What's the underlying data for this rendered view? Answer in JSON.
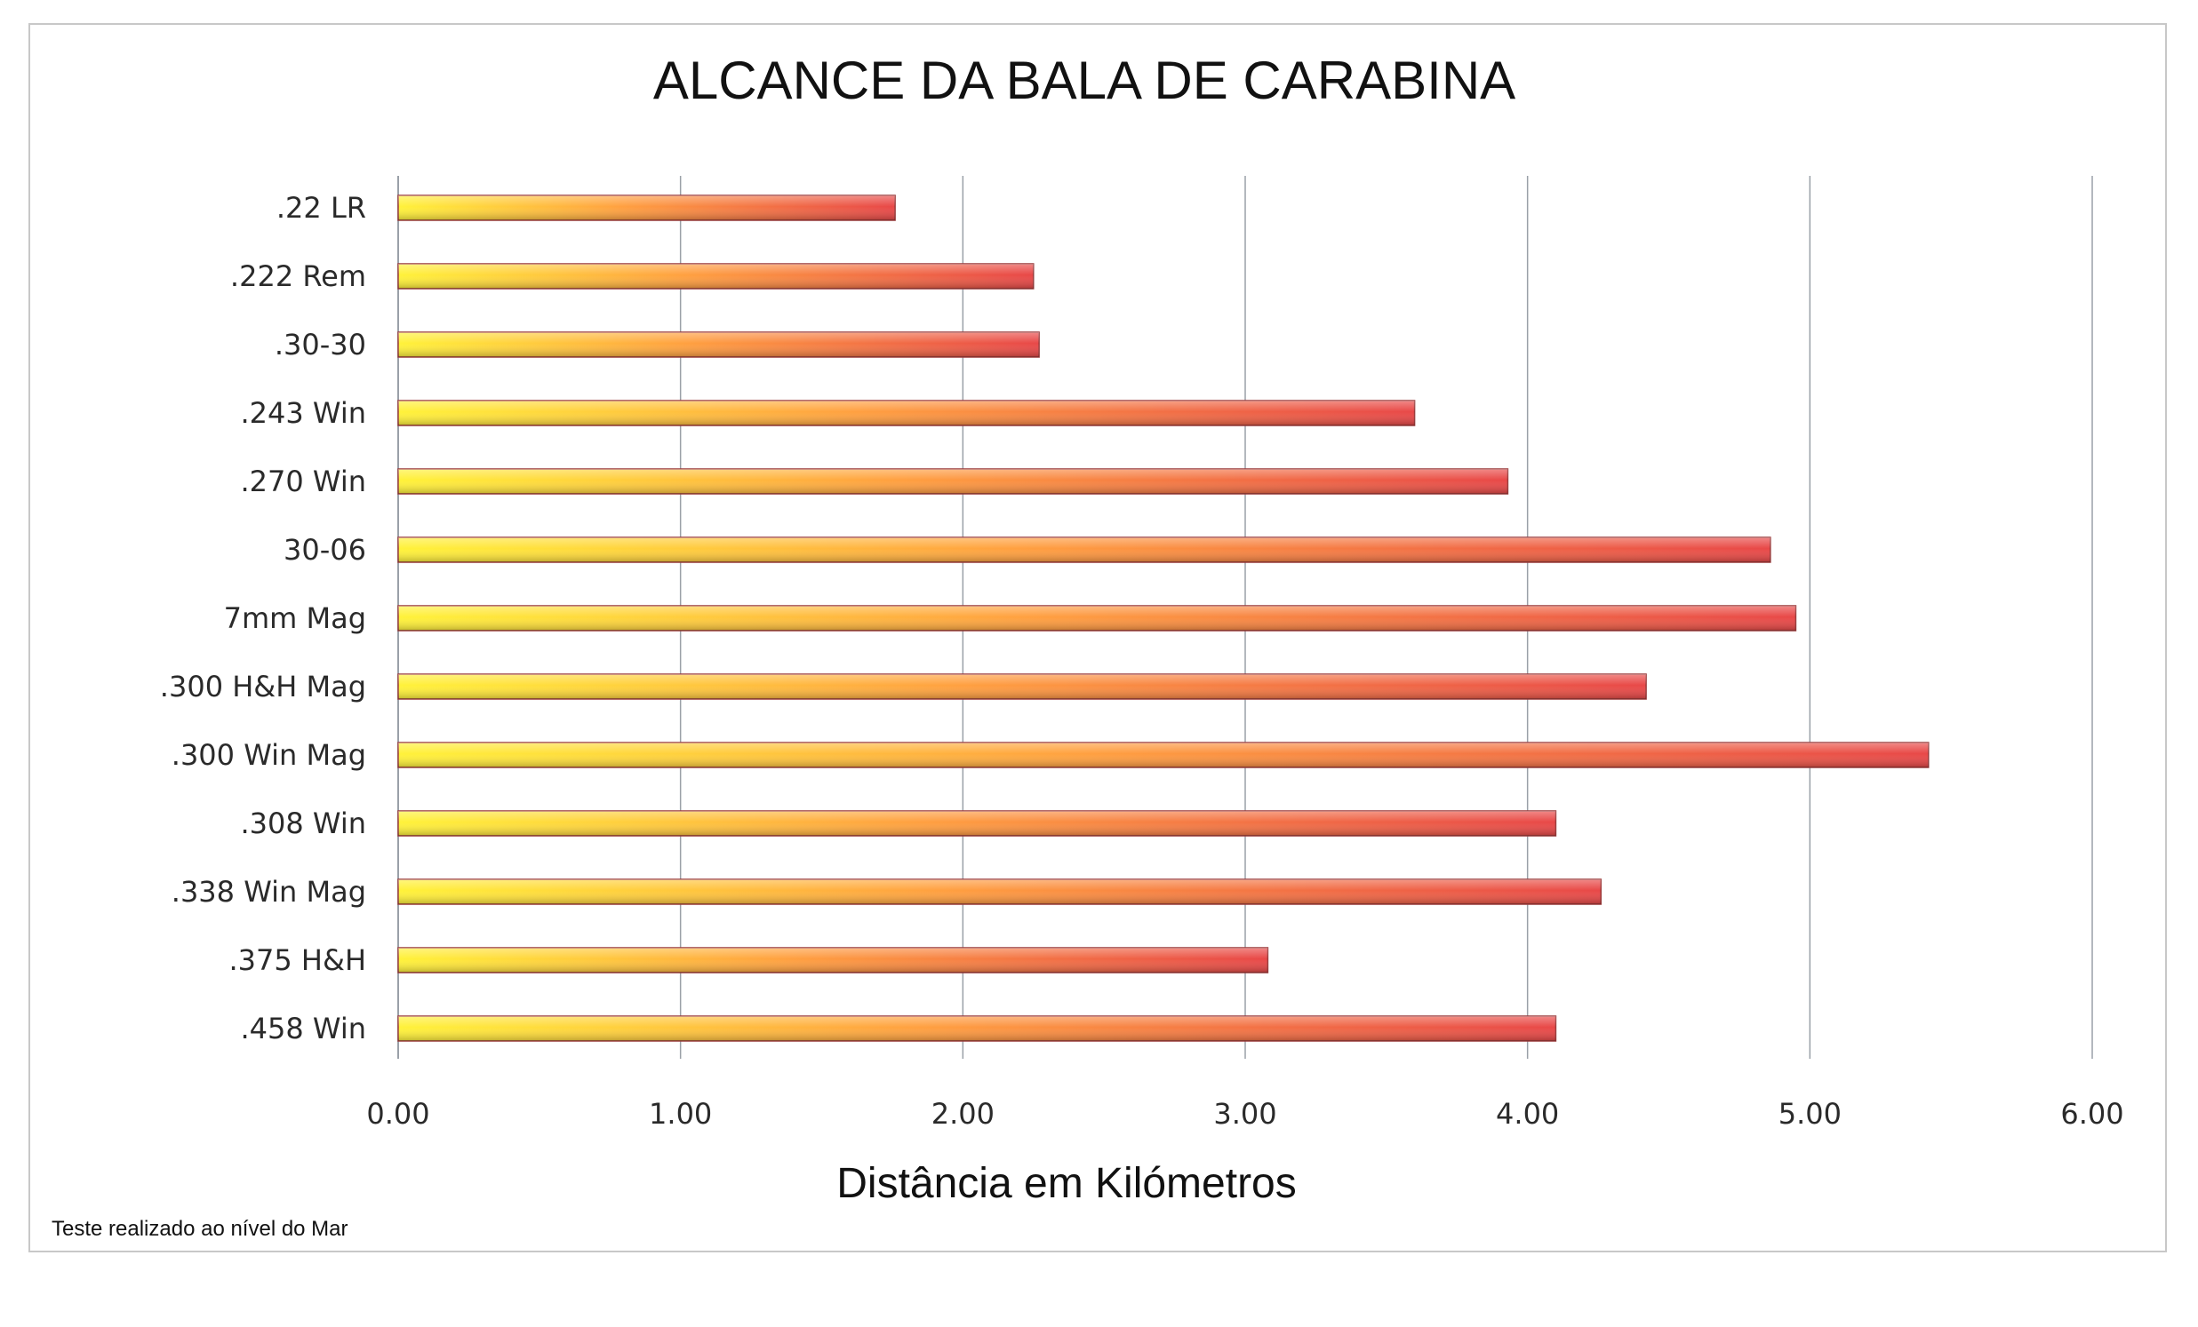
{
  "chart_data": {
    "type": "bar",
    "orientation": "horizontal",
    "title": "ALCANCE DA BALA DE CARABINA",
    "xlabel": "Distância em Kilómetros",
    "ylabel": "",
    "xlim": [
      0,
      6
    ],
    "x_ticks": [
      "0.00",
      "1.00",
      "2.00",
      "3.00",
      "4.00",
      "5.00",
      "6.00"
    ],
    "categories": [
      ".22 LR",
      ".222 Rem",
      ".30-30",
      ".243 Win",
      ".270 Win",
      "30-06",
      "7mm Mag",
      ".300 H&H Mag",
      ".300 Win Mag",
      ".308 Win",
      ".338 Win Mag",
      ".375 H&H",
      ".458 Win"
    ],
    "values": [
      1.76,
      2.25,
      2.27,
      3.6,
      3.93,
      4.86,
      4.95,
      4.42,
      5.42,
      4.1,
      4.26,
      3.08,
      4.1
    ],
    "grid": "vertical",
    "legend": "none",
    "colors": {
      "bar_left": "#fff23a",
      "bar_mid": "#ffa040",
      "bar_right": "#e84848",
      "bar_edge": "#9a3a3a",
      "grid": "#9aa0a8"
    }
  },
  "footnote": "Teste realizado ao nível do Mar"
}
